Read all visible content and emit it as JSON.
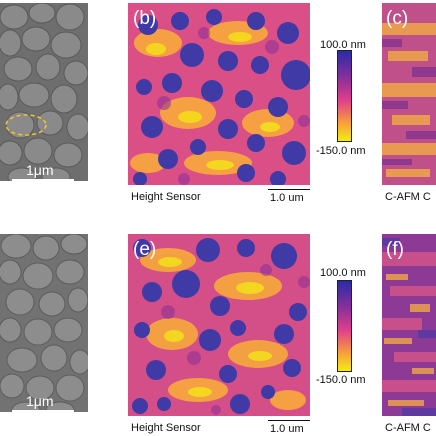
{
  "panels": {
    "a": {
      "scale_label": "1μm"
    },
    "b": {
      "letter": "(b)",
      "caption": "Height Sensor",
      "scale_label": "1.0 um"
    },
    "c": {
      "letter": "(c)",
      "caption": "C-AFM C"
    },
    "d": {
      "scale_label": "1μm"
    },
    "e": {
      "letter": "(e)",
      "caption": "Height Sensor",
      "scale_label": "1.0 um"
    },
    "f": {
      "letter": "(f)",
      "caption": "C-AFM C"
    }
  },
  "colorbar_top": {
    "max_label": "100.0 nm",
    "min_label": "-150.0 nm",
    "colors": [
      "#2a2aa8",
      "#8a2f9a",
      "#e0408a",
      "#f7a13a",
      "#f4ee10"
    ]
  },
  "colorbar_bottom": {
    "max_label": "100.0 nm",
    "min_label": "-150.0 nm",
    "colors": [
      "#2a2aa8",
      "#8a2f9a",
      "#e0408a",
      "#f7a13a",
      "#f4ee10"
    ]
  },
  "colors": {
    "sem_gray": "#6f6f6f",
    "afm_background": "#d94f86",
    "grain_blue": "#3f3aa6",
    "annotation_ellipse": "#f2c12e"
  }
}
